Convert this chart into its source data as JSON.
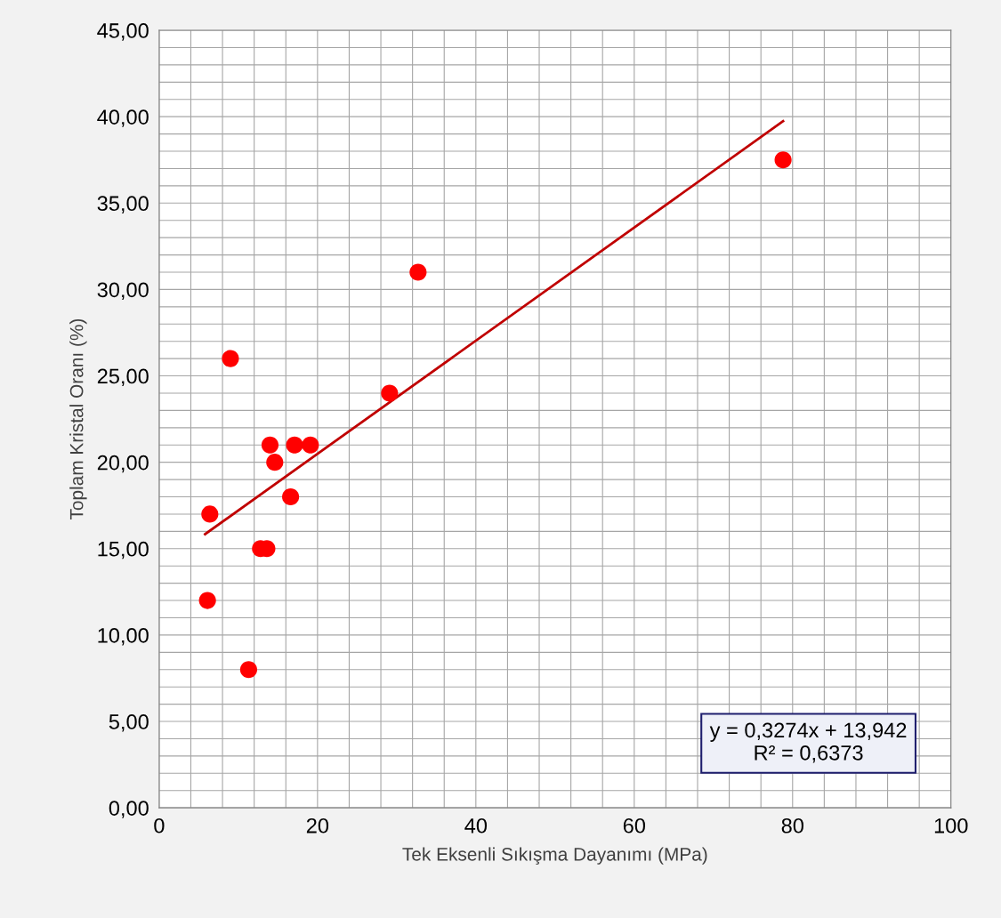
{
  "chart_data": {
    "type": "scatter",
    "xlabel": "Tek Eksenli Sıkışma Dayanımı (MPa)",
    "ylabel": "Toplam Kristal Oranı (%)",
    "xlim": [
      0,
      100
    ],
    "ylim": [
      0,
      45
    ],
    "xticks": [
      0,
      {
        "value": 4,
        "label": null
      },
      {
        "value": 8,
        "label": null
      },
      {
        "value": 12,
        "label": null
      },
      {
        "value": 16,
        "label": null
      },
      20,
      {
        "value": 24,
        "label": null
      },
      {
        "value": 28,
        "label": null
      },
      {
        "value": 32,
        "label": null
      },
      {
        "value": 36,
        "label": null
      },
      40,
      {
        "value": 44,
        "label": null
      },
      {
        "value": 48,
        "label": null
      },
      {
        "value": 52,
        "label": null
      },
      {
        "value": 56,
        "label": null
      },
      60,
      {
        "value": 64,
        "label": null
      },
      {
        "value": 68,
        "label": null
      },
      {
        "value": 72,
        "label": null
      },
      {
        "value": 76,
        "label": null
      },
      80,
      {
        "value": 84,
        "label": null
      },
      {
        "value": 88,
        "label": null
      },
      {
        "value": 92,
        "label": null
      },
      {
        "value": 96,
        "label": null
      },
      100
    ],
    "yticks": [
      {
        "value": 0,
        "label": "0,00"
      },
      {
        "value": 1,
        "label": null
      },
      {
        "value": 2,
        "label": null
      },
      {
        "value": 3,
        "label": null
      },
      {
        "value": 4,
        "label": null
      },
      {
        "value": 5,
        "label": "5,00"
      },
      {
        "value": 6,
        "label": null
      },
      {
        "value": 7,
        "label": null
      },
      {
        "value": 8,
        "label": null
      },
      {
        "value": 9,
        "label": null
      },
      {
        "value": 10,
        "label": "10,00"
      },
      {
        "value": 11,
        "label": null
      },
      {
        "value": 12,
        "label": null
      },
      {
        "value": 13,
        "label": null
      },
      {
        "value": 14,
        "label": null
      },
      {
        "value": 15,
        "label": "15,00"
      },
      {
        "value": 16,
        "label": null
      },
      {
        "value": 17,
        "label": null
      },
      {
        "value": 18,
        "label": null
      },
      {
        "value": 19,
        "label": null
      },
      {
        "value": 20,
        "label": "20,00"
      },
      {
        "value": 21,
        "label": null
      },
      {
        "value": 22,
        "label": null
      },
      {
        "value": 23,
        "label": null
      },
      {
        "value": 24,
        "label": null
      },
      {
        "value": 25,
        "label": "25,00"
      },
      {
        "value": 26,
        "label": null
      },
      {
        "value": 27,
        "label": null
      },
      {
        "value": 28,
        "label": null
      },
      {
        "value": 29,
        "label": null
      },
      {
        "value": 30,
        "label": "30,00"
      },
      {
        "value": 31,
        "label": null
      },
      {
        "value": 32,
        "label": null
      },
      {
        "value": 33,
        "label": null
      },
      {
        "value": 34,
        "label": null
      },
      {
        "value": 35,
        "label": "35,00"
      },
      {
        "value": 36,
        "label": null
      },
      {
        "value": 37,
        "label": null
      },
      {
        "value": 38,
        "label": null
      },
      {
        "value": 39,
        "label": null
      },
      {
        "value": 40,
        "label": "40,00"
      },
      {
        "value": 41,
        "label": null
      },
      {
        "value": 42,
        "label": null
      },
      {
        "value": 43,
        "label": null
      },
      {
        "value": 44,
        "label": null
      },
      {
        "value": 45,
        "label": "45,00"
      }
    ],
    "grid": true,
    "legend": false,
    "series": [
      {
        "color": "#ff0000",
        "marker": "circle",
        "x": [
          78.8,
          32.7,
          9.0,
          29.1,
          14.0,
          17.1,
          19.1,
          14.6,
          16.6,
          6.4,
          12.8,
          13.6,
          6.1,
          11.3
        ],
        "values": [
          37.5,
          31,
          26,
          24,
          21,
          21,
          21,
          20,
          18,
          17,
          15,
          15,
          12,
          8
        ]
      },
      {
        "type": "line",
        "color": "#c00000",
        "line_style": "solid",
        "x": [
          5.8,
          78.8
        ],
        "values": [
          15.84,
          39.74
        ]
      }
    ],
    "annotations": [
      "y = 0,3274x + 13,942\nR² = 0,6373"
    ]
  }
}
